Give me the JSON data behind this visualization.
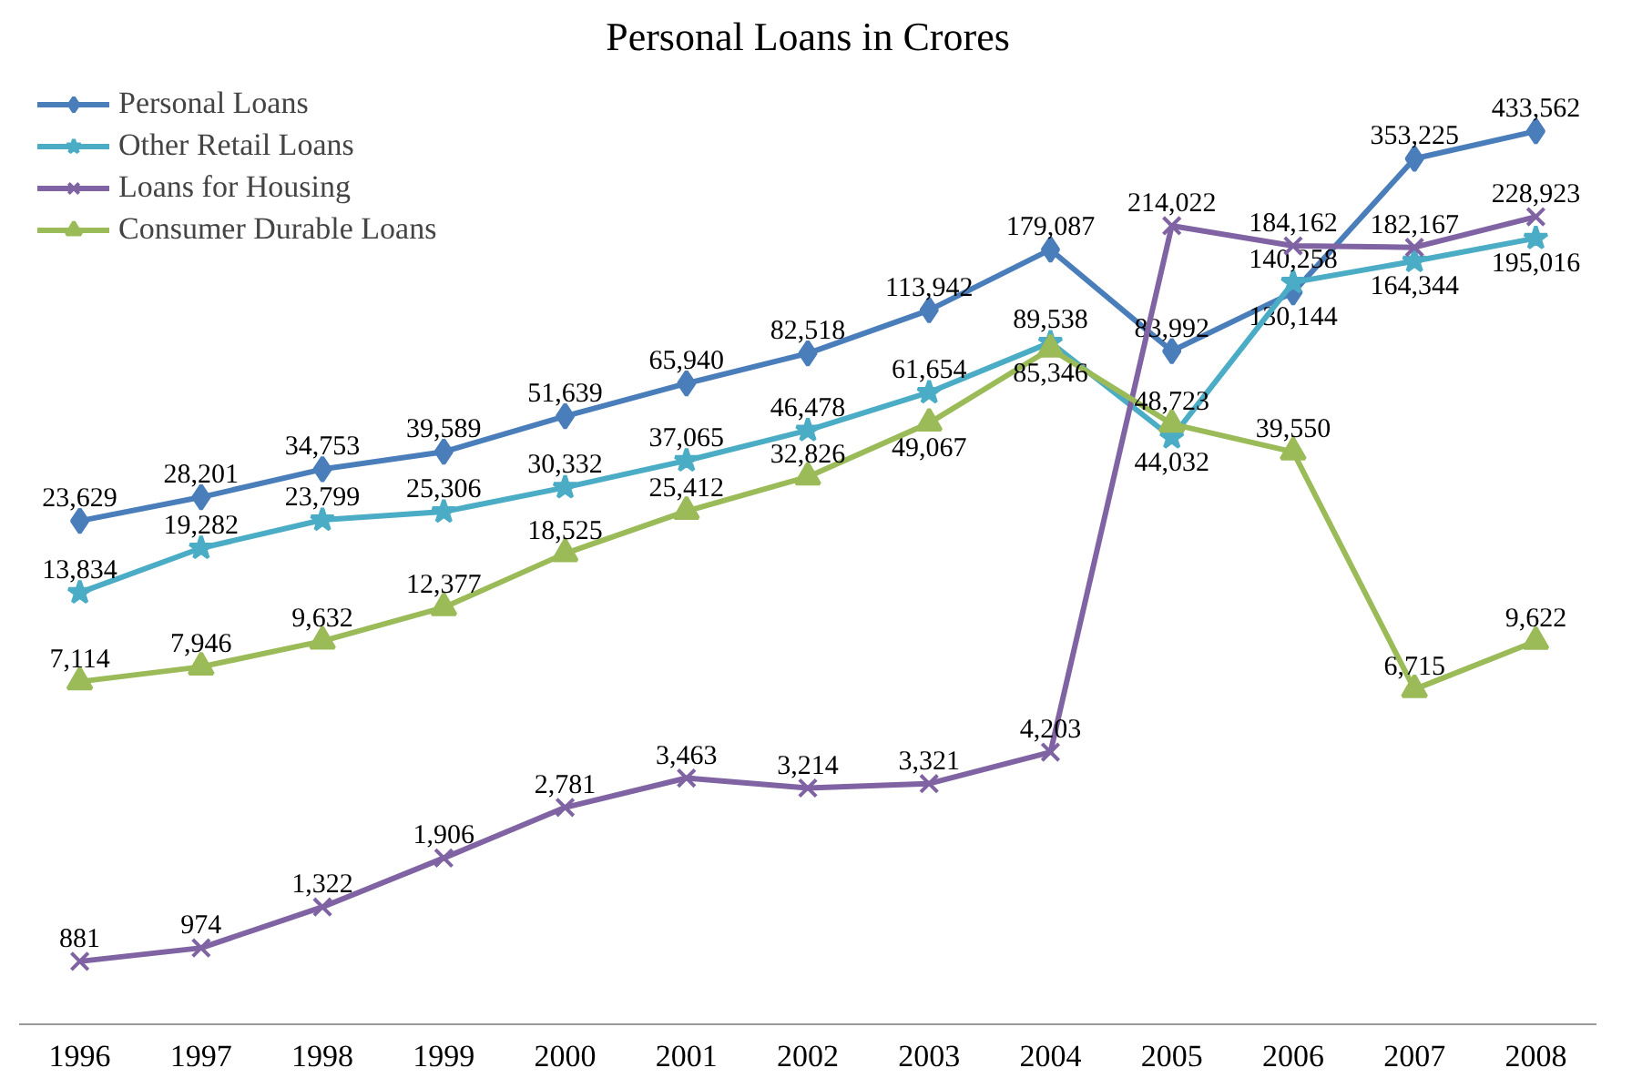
{
  "chart_data": {
    "type": "line",
    "title": "Personal Loans in Crores",
    "log": true,
    "tick_labels": "x",
    "categories": [
      "1996",
      "1997",
      "1998",
      "1999",
      "2000",
      "2001",
      "2002",
      "2003",
      "2004",
      "2005",
      "2006",
      "2007",
      "2008"
    ],
    "series": [
      {
        "name": "Personal Loans",
        "color": "#4a7ebb",
        "marker": "diamond",
        "values": [
          23629,
          28201,
          34753,
          39589,
          51639,
          65940,
          82518,
          113942,
          179087,
          83992,
          130144,
          353225,
          433562
        ],
        "value_labels": [
          "23,629",
          "28,201",
          "34,753",
          "39,589",
          "51,639",
          "65,940",
          "82,518",
          "113,942",
          "179,087",
          "83,992",
          "130,144",
          "353,225",
          "433,562"
        ]
      },
      {
        "name": "Other Retail Loans",
        "color": "#4bacc6",
        "marker": "star",
        "values": [
          13834,
          19282,
          23799,
          25306,
          30332,
          37065,
          46478,
          61654,
          89538,
          44032,
          140258,
          164344,
          195016
        ],
        "value_labels": [
          "13,834",
          "19,282",
          "23,799",
          "25,306",
          "30,332",
          "37,065",
          "46,478",
          "61,654",
          "89,538",
          "44,032",
          "140,258",
          "164,344",
          "195,016"
        ]
      },
      {
        "name": "Loans for Housing",
        "color": "#7f63a2",
        "marker": "cross",
        "values": [
          881,
          974,
          1322,
          1906,
          2781,
          3463,
          3214,
          3321,
          4203,
          214022,
          184162,
          182167,
          228923
        ],
        "value_labels": [
          "881",
          "974",
          "1,322",
          "1,906",
          "2,781",
          "3,463",
          "3,214",
          "3,321",
          "4,203",
          "214,022",
          "184,162",
          "182,167",
          "228,923"
        ]
      },
      {
        "name": "Consumer Durable Loans",
        "color": "#9bbb59",
        "marker": "triangle",
        "values": [
          7114,
          7946,
          9632,
          12377,
          18525,
          25412,
          32826,
          49067,
          85346,
          48723,
          39550,
          6715,
          9622
        ],
        "value_labels": [
          "7,114",
          "7,946",
          "9,632",
          "12,377",
          "18,525",
          "25,412",
          "32,826",
          "49,067",
          "85,346",
          "48,723",
          "39,550",
          "6,715",
          "9,622"
        ]
      }
    ],
    "legend": "top left",
    "grid": false
  }
}
